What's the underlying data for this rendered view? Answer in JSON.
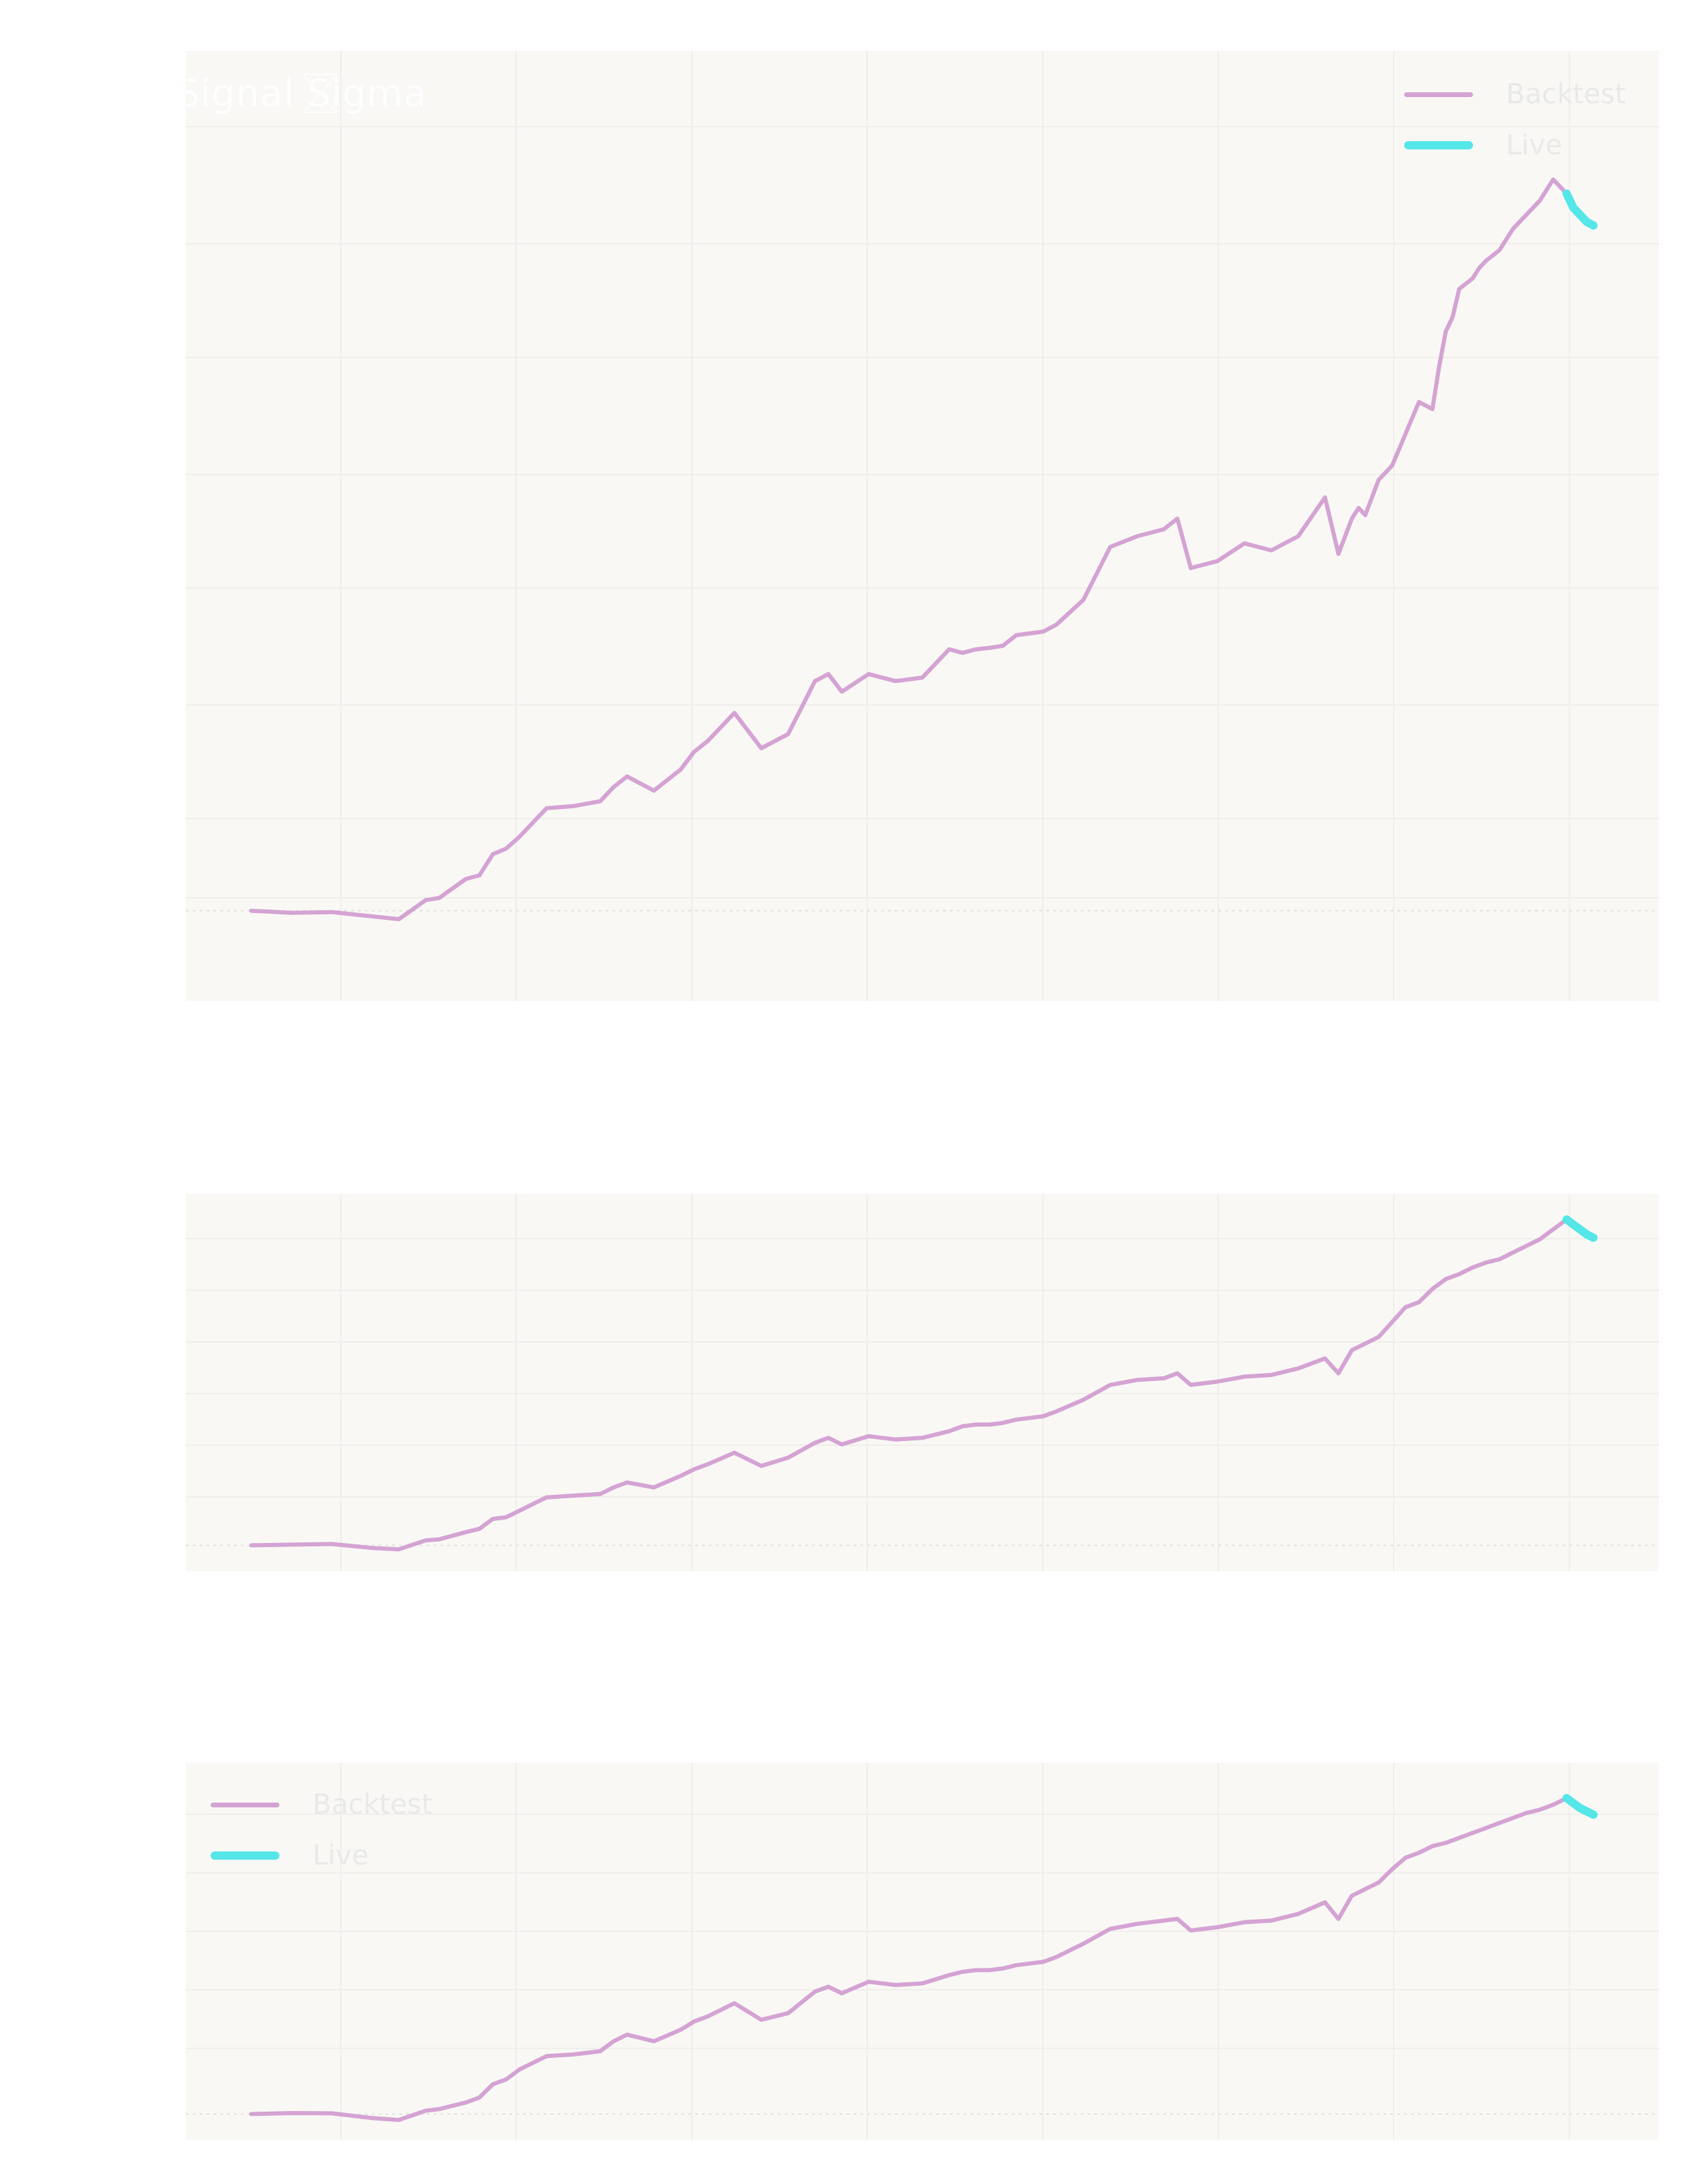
{
  "colors": {
    "panel_background": "#f9f8f5",
    "grid": "#efeeea",
    "backtest": "#d4a3d3",
    "live": "#55e6e8",
    "logo": "#ffffff",
    "legend_text": "#e9e9e7"
  },
  "logo": {
    "text": "Signal Sigma",
    "icon": "chevron-logo-icon"
  },
  "legend": {
    "top": [
      {
        "label": "Backtest",
        "color_key": "backtest"
      },
      {
        "label": "Live",
        "color_key": "live"
      }
    ],
    "bottom": [
      {
        "label": "Backtest",
        "color_key": "backtest"
      },
      {
        "label": "Live",
        "color_key": "live"
      }
    ]
  },
  "chart_data": [
    {
      "type": "line",
      "title": "",
      "xlabel": "",
      "ylabel": "",
      "grid": true,
      "legend_position": "top-right",
      "x_range": [
        0,
        100
      ],
      "y_range": [
        -5,
        110
      ],
      "baseline": 0,
      "series": [
        {
          "name": "Backtest",
          "color": "#d4a3d3",
          "x": [
            0,
            3,
            6,
            9,
            11,
            13,
            14,
            16,
            17,
            18,
            19,
            20,
            21,
            22,
            24,
            26,
            27,
            28,
            30,
            32,
            33,
            34,
            36,
            38,
            40,
            42,
            43,
            44,
            46,
            48,
            50,
            52,
            53,
            54,
            55,
            56,
            57,
            59,
            60,
            62,
            64,
            66,
            68,
            69,
            70,
            71,
            72,
            74,
            76,
            78,
            80,
            81,
            82,
            82.5,
            83,
            84,
            85,
            86,
            87,
            88,
            88.5,
            89,
            89.5,
            90,
            91,
            91.5,
            92,
            93,
            94,
            95,
            96,
            97,
            98
          ],
          "y": [
            0,
            -0.3,
            -0.2,
            -0.8,
            -1.2,
            1.5,
            1.8,
            4.5,
            5.0,
            8.0,
            8.8,
            10.5,
            12.5,
            14.5,
            14.8,
            15.5,
            17.5,
            19.0,
            17.0,
            20.0,
            22.5,
            24.0,
            28.0,
            23.0,
            25.0,
            32.5,
            33.5,
            31.0,
            33.5,
            32.5,
            33.0,
            37.0,
            36.5,
            37.0,
            37.2,
            37.5,
            39.0,
            39.5,
            40.5,
            44.0,
            51.5,
            53.0,
            54.0,
            55.5,
            48.5,
            49.0,
            49.5,
            52.0,
            51.0,
            53.0,
            58.5,
            50.5,
            55.5,
            57.0,
            56.0,
            61.0,
            63.0,
            67.5,
            72.0,
            71.0,
            77.0,
            82.0,
            84.0,
            88.0,
            89.5,
            91.0,
            92.0,
            93.5,
            96.5,
            98.5,
            100.5,
            103.5,
            101.5
          ]
        },
        {
          "name": "Live",
          "color": "#55e6e8",
          "x": [
            98,
            98.5,
            99,
            99.5,
            100
          ],
          "y": [
            101.5,
            99.5,
            98.5,
            97.5,
            97.0
          ]
        }
      ]
    },
    {
      "type": "line",
      "title": "",
      "xlabel": "",
      "ylabel": "",
      "grid": true,
      "x_range": [
        0,
        100
      ],
      "y_range": [
        -2,
        100
      ],
      "baseline": 0,
      "series": [
        {
          "name": "Backtest",
          "color": "#d4a3d3",
          "x": [
            0,
            3,
            6,
            9,
            11,
            13,
            14,
            16,
            17,
            18,
            19,
            20,
            21,
            22,
            24,
            26,
            27,
            28,
            30,
            32,
            33,
            34,
            36,
            38,
            40,
            42,
            43,
            44,
            46,
            48,
            50,
            52,
            53,
            54,
            55,
            56,
            57,
            59,
            60,
            62,
            64,
            66,
            68,
            69,
            70,
            71,
            72,
            74,
            76,
            78,
            80,
            81,
            82,
            83,
            84,
            85,
            86,
            87,
            88,
            89,
            90,
            91,
            92,
            93,
            94,
            95,
            96,
            97,
            98
          ],
          "y": [
            0,
            0.2,
            0.4,
            -0.8,
            -1.2,
            1.5,
            1.8,
            4.0,
            5.0,
            8.0,
            8.5,
            10.5,
            12.5,
            14.5,
            15.0,
            15.5,
            17.5,
            19.0,
            17.5,
            21.0,
            23.0,
            24.5,
            28.0,
            24.0,
            26.5,
            31.0,
            32.5,
            30.5,
            33.0,
            32.0,
            32.5,
            34.5,
            36.0,
            36.5,
            36.5,
            37.0,
            38.0,
            39.0,
            40.5,
            44.0,
            48.5,
            50.0,
            50.5,
            52.0,
            48.5,
            49.0,
            49.5,
            51.0,
            51.5,
            53.5,
            56.5,
            52.0,
            59.0,
            61.0,
            63.0,
            67.5,
            72.0,
            73.5,
            77.5,
            80.5,
            82.0,
            84.0,
            85.5,
            86.5,
            88.5,
            90.5,
            92.5,
            95.5,
            98.5
          ]
        },
        {
          "name": "Live",
          "color": "#55e6e8",
          "x": [
            98,
            98.5,
            99,
            99.5,
            100
          ],
          "y": [
            98.5,
            97.0,
            95.5,
            94.0,
            93.0
          ]
        }
      ]
    },
    {
      "type": "line",
      "title": "",
      "xlabel": "",
      "ylabel": "",
      "grid": true,
      "legend_position": "top-left",
      "x_range": [
        0,
        100
      ],
      "y_range": [
        -2,
        100
      ],
      "baseline": 0,
      "series": [
        {
          "name": "Backtest",
          "color": "#d4a3d3",
          "x": [
            0,
            3,
            6,
            9,
            11,
            13,
            14,
            16,
            17,
            18,
            19,
            20,
            21,
            22,
            24,
            26,
            27,
            28,
            30,
            32,
            33,
            34,
            36,
            38,
            40,
            42,
            43,
            44,
            46,
            48,
            50,
            52,
            53,
            54,
            55,
            56,
            57,
            59,
            60,
            62,
            64,
            66,
            68,
            69,
            70,
            71,
            72,
            74,
            76,
            78,
            80,
            81,
            82,
            83,
            84,
            85,
            86,
            87,
            88,
            89,
            90,
            91,
            92,
            93,
            94,
            95,
            96,
            97,
            98
          ],
          "y": [
            0,
            0.3,
            0.2,
            -1.2,
            -1.8,
            1.0,
            1.5,
            3.5,
            5.0,
            9.0,
            10.5,
            13.5,
            15.5,
            17.5,
            18.0,
            19.0,
            22.0,
            24.0,
            22.0,
            25.5,
            28.0,
            29.5,
            33.5,
            28.5,
            30.5,
            37.0,
            38.5,
            36.5,
            40.0,
            39.0,
            39.5,
            42.0,
            43.0,
            43.5,
            43.5,
            44.0,
            45.0,
            46.0,
            47.5,
            51.5,
            56.0,
            57.5,
            58.5,
            59.0,
            55.5,
            56.0,
            56.5,
            58.0,
            58.5,
            60.5,
            64.0,
            59.0,
            66.0,
            68.0,
            70.0,
            74.0,
            77.5,
            79.0,
            81.0,
            82.0,
            83.5,
            85.0,
            86.5,
            88.0,
            89.5,
            91.0,
            92.0,
            93.5,
            95.5
          ]
        },
        {
          "name": "Live",
          "color": "#55e6e8",
          "x": [
            98,
            98.5,
            99,
            99.5,
            100
          ],
          "y": [
            95.5,
            94.0,
            92.5,
            91.5,
            90.5
          ]
        }
      ]
    }
  ]
}
